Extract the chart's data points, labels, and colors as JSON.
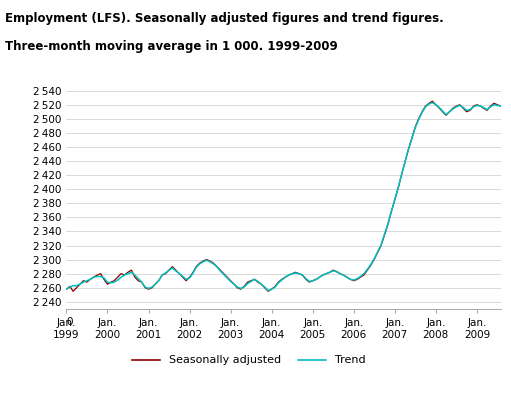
{
  "title_line1": "Employment (LFS). Seasonally adjusted figures and trend figures.",
  "title_line2": "Three-month moving average in 1 000. 1999-2009",
  "ylabel": "",
  "yticks": [
    2240,
    2260,
    2280,
    2300,
    2320,
    2340,
    2360,
    2380,
    2400,
    2420,
    2440,
    2460,
    2480,
    2500,
    2520,
    2540
  ],
  "ylim": [
    2230,
    2545
  ],
  "xtick_years": [
    1999,
    2000,
    2001,
    2002,
    2003,
    2004,
    2005,
    2006,
    2007,
    2008,
    2009
  ],
  "sa_color": "#8B0000",
  "trend_color": "#00BFBF",
  "background_color": "#ffffff",
  "grid_color": "#cccccc",
  "legend_sa": "Seasonally adjusted",
  "legend_trend": "Trend",
  "seasonally_adjusted": [
    2258,
    2262,
    2255,
    2260,
    2265,
    2270,
    2268,
    2272,
    2275,
    2278,
    2280,
    2272,
    2265,
    2268,
    2270,
    2275,
    2280,
    2278,
    2282,
    2285,
    2275,
    2270,
    2268,
    2260,
    2258,
    2260,
    2265,
    2270,
    2278,
    2280,
    2285,
    2290,
    2285,
    2280,
    2275,
    2270,
    2275,
    2282,
    2290,
    2295,
    2298,
    2300,
    2298,
    2295,
    2290,
    2285,
    2280,
    2275,
    2270,
    2265,
    2260,
    2258,
    2262,
    2268,
    2270,
    2272,
    2268,
    2265,
    2260,
    2255,
    2258,
    2262,
    2268,
    2272,
    2275,
    2278,
    2280,
    2282,
    2280,
    2278,
    2272,
    2268,
    2270,
    2272,
    2275,
    2278,
    2280,
    2282,
    2285,
    2283,
    2280,
    2278,
    2275,
    2272,
    2270,
    2272,
    2275,
    2278,
    2285,
    2292,
    2300,
    2310,
    2320,
    2335,
    2350,
    2368,
    2385,
    2402,
    2420,
    2438,
    2456,
    2472,
    2488,
    2500,
    2510,
    2518,
    2522,
    2525,
    2520,
    2515,
    2510,
    2505,
    2510,
    2515,
    2518,
    2520,
    2515,
    2510,
    2512,
    2518,
    2520,
    2518,
    2515,
    2512,
    2518,
    2522,
    2520,
    2518,
    2515,
    2520,
    2522,
    2520
  ],
  "trend": [
    2258,
    2261,
    2263,
    2263,
    2265,
    2268,
    2270,
    2272,
    2275,
    2276,
    2276,
    2274,
    2268,
    2267,
    2268,
    2271,
    2275,
    2278,
    2280,
    2282,
    2278,
    2273,
    2268,
    2261,
    2259,
    2261,
    2265,
    2270,
    2278,
    2281,
    2285,
    2288,
    2284,
    2280,
    2276,
    2272,
    2274,
    2281,
    2289,
    2294,
    2297,
    2299,
    2297,
    2294,
    2290,
    2284,
    2279,
    2274,
    2269,
    2265,
    2261,
    2259,
    2261,
    2266,
    2269,
    2272,
    2269,
    2265,
    2261,
    2256,
    2258,
    2261,
    2267,
    2271,
    2275,
    2278,
    2280,
    2281,
    2280,
    2278,
    2273,
    2269,
    2270,
    2272,
    2275,
    2278,
    2280,
    2282,
    2284,
    2283,
    2280,
    2278,
    2275,
    2272,
    2271,
    2273,
    2276,
    2280,
    2286,
    2293,
    2301,
    2311,
    2321,
    2336,
    2351,
    2368,
    2386,
    2403,
    2420,
    2438,
    2456,
    2471,
    2487,
    2499,
    2509,
    2517,
    2521,
    2523,
    2520,
    2516,
    2511,
    2506,
    2510,
    2514,
    2517,
    2519,
    2516,
    2512,
    2513,
    2517,
    2519,
    2518,
    2516,
    2513,
    2517,
    2520,
    2519,
    2518,
    2516,
    2519,
    2521,
    2520
  ]
}
